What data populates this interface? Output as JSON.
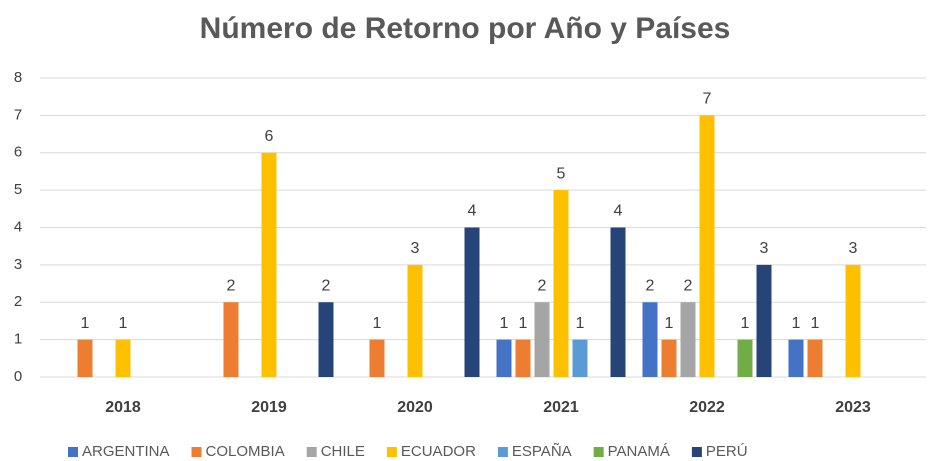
{
  "chart_data": {
    "type": "bar",
    "title": "Número de Retorno por Año y Países",
    "categories": [
      "2018",
      "2019",
      "2020",
      "2021",
      "2022",
      "2023"
    ],
    "series": [
      {
        "name": "ARGENTINA",
        "color": "#4472c4",
        "values": [
          null,
          null,
          null,
          1,
          2,
          1
        ]
      },
      {
        "name": "COLOMBIA",
        "color": "#ed7d31",
        "values": [
          1,
          2,
          1,
          1,
          1,
          1
        ]
      },
      {
        "name": "CHILE",
        "color": "#a5a5a5",
        "values": [
          null,
          null,
          null,
          2,
          2,
          null
        ]
      },
      {
        "name": "ECUADOR",
        "color": "#ffc000",
        "values": [
          1,
          6,
          3,
          5,
          7,
          3
        ]
      },
      {
        "name": "ESPAÑA",
        "color": "#5b9bd5",
        "values": [
          null,
          null,
          null,
          1,
          null,
          null
        ]
      },
      {
        "name": "PANAMÁ",
        "color": "#70ad47",
        "values": [
          null,
          null,
          null,
          null,
          1,
          null
        ]
      },
      {
        "name": "PERÚ",
        "color": "#264478",
        "values": [
          null,
          2,
          4,
          4,
          3,
          null
        ]
      }
    ],
    "ylim": [
      0,
      8
    ],
    "yticks": [
      0,
      1,
      2,
      3,
      4,
      5,
      6,
      7,
      8
    ],
    "grid": true,
    "legend": "bottom"
  }
}
